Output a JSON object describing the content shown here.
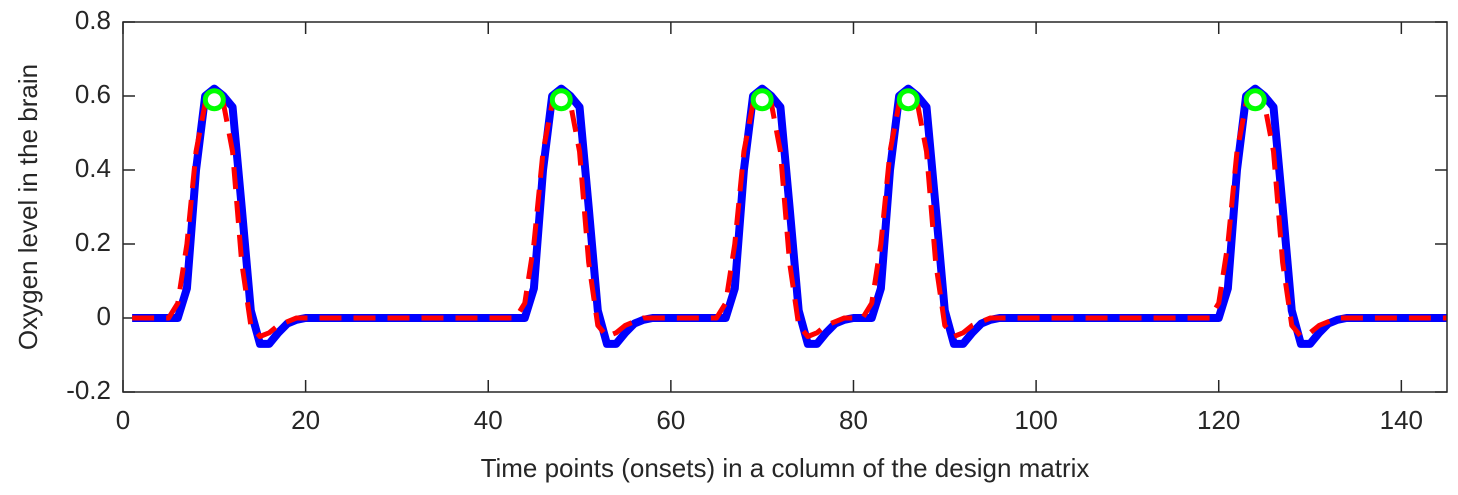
{
  "chart_data": {
    "type": "line",
    "xlabel": "Time points (onsets) in a column of the design matrix",
    "ylabel": "Oxygen level in the brain",
    "xlim": [
      0,
      145
    ],
    "xticks": [
      0,
      20,
      40,
      60,
      80,
      100,
      120,
      140
    ],
    "ylim": [
      -0.2,
      0.8
    ],
    "yticks": [
      -0.2,
      0,
      0.2,
      0.4,
      0.6,
      0.8
    ],
    "grid": false,
    "x": [
      1,
      2,
      3,
      4,
      5,
      6,
      7,
      8,
      9,
      10,
      11,
      12,
      13,
      14,
      15,
      16,
      17,
      18,
      19,
      20,
      21,
      22,
      23,
      24,
      25,
      26,
      27,
      28,
      29,
      30,
      31,
      32,
      33,
      34,
      35,
      36,
      37,
      38,
      39,
      40,
      41,
      42,
      43,
      44,
      45,
      46,
      47,
      48,
      49,
      50,
      51,
      52,
      53,
      54,
      55,
      56,
      57,
      58,
      59,
      60,
      61,
      62,
      63,
      64,
      65,
      66,
      67,
      68,
      69,
      70,
      71,
      72,
      73,
      74,
      75,
      76,
      77,
      78,
      79,
      80,
      81,
      82,
      83,
      84,
      85,
      86,
      87,
      88,
      89,
      90,
      91,
      92,
      93,
      94,
      95,
      96,
      97,
      98,
      99,
      100,
      101,
      102,
      103,
      104,
      105,
      106,
      107,
      108,
      109,
      110,
      111,
      112,
      113,
      114,
      115,
      116,
      117,
      118,
      119,
      120,
      121,
      122,
      123,
      124,
      125,
      126,
      127,
      128,
      129,
      130,
      131,
      132,
      133,
      134,
      135,
      136,
      137,
      138,
      139,
      140,
      141,
      142,
      143,
      144,
      145
    ],
    "series": [
      {
        "color": "#0000ff",
        "line_style": "solid",
        "line_width": 8,
        "values": [
          0,
          0,
          0,
          0,
          0,
          0,
          0.08,
          0.4,
          0.6,
          0.62,
          0.6,
          0.57,
          0.3,
          0.02,
          -0.07,
          -0.07,
          -0.04,
          -0.015,
          -0.005,
          0,
          0,
          0,
          0,
          0,
          0,
          0,
          0,
          0,
          0,
          0,
          0,
          0,
          0,
          0,
          0,
          0,
          0,
          0,
          0,
          0,
          0,
          0,
          0,
          0,
          0.08,
          0.4,
          0.6,
          0.62,
          0.6,
          0.57,
          0.3,
          0.02,
          -0.07,
          -0.07,
          -0.04,
          -0.015,
          -0.005,
          0,
          0,
          0,
          0,
          0,
          0,
          0,
          0,
          0,
          0.08,
          0.4,
          0.6,
          0.62,
          0.6,
          0.57,
          0.3,
          0.02,
          -0.07,
          -0.07,
          -0.04,
          -0.015,
          -0.005,
          0,
          0,
          0,
          0.08,
          0.4,
          0.6,
          0.62,
          0.6,
          0.57,
          0.3,
          0.02,
          -0.07,
          -0.07,
          -0.04,
          -0.015,
          -0.005,
          0,
          0,
          0,
          0,
          0,
          0,
          0,
          0,
          0,
          0,
          0,
          0,
          0,
          0,
          0,
          0,
          0,
          0,
          0,
          0,
          0,
          0,
          0,
          0,
          0,
          0.08,
          0.4,
          0.6,
          0.62,
          0.6,
          0.57,
          0.3,
          0.02,
          -0.07,
          -0.07,
          -0.04,
          -0.015,
          -0.005,
          0,
          0,
          0,
          0,
          0,
          0,
          0,
          0,
          0,
          0,
          0,
          0
        ]
      },
      {
        "color": "#ff0000",
        "line_style": "dashed",
        "line_width": 5,
        "values": [
          0,
          0,
          0,
          0,
          0,
          0.04,
          0.2,
          0.45,
          0.58,
          0.59,
          0.58,
          0.45,
          0.15,
          -0.02,
          -0.05,
          -0.04,
          -0.02,
          -0.01,
          0,
          0,
          0,
          0,
          0,
          0,
          0,
          0,
          0,
          0,
          0,
          0,
          0,
          0,
          0,
          0,
          0,
          0,
          0,
          0,
          0,
          0,
          0,
          0,
          0,
          0.04,
          0.2,
          0.45,
          0.58,
          0.59,
          0.58,
          0.45,
          0.15,
          -0.02,
          -0.05,
          -0.04,
          -0.02,
          -0.01,
          0,
          0,
          0,
          0,
          0,
          0,
          0,
          0,
          0,
          0.04,
          0.2,
          0.45,
          0.58,
          0.59,
          0.58,
          0.45,
          0.15,
          -0.02,
          -0.05,
          -0.04,
          -0.02,
          -0.01,
          0,
          0,
          0,
          0.04,
          0.2,
          0.45,
          0.58,
          0.59,
          0.58,
          0.45,
          0.15,
          -0.02,
          -0.05,
          -0.04,
          -0.02,
          -0.01,
          0,
          0,
          0,
          0,
          0,
          0,
          0,
          0,
          0,
          0,
          0,
          0,
          0,
          0,
          0,
          0,
          0,
          0,
          0,
          0,
          0,
          0,
          0,
          0,
          0,
          0.04,
          0.2,
          0.45,
          0.58,
          0.59,
          0.58,
          0.45,
          0.15,
          -0.02,
          -0.05,
          -0.04,
          -0.02,
          -0.01,
          0,
          0,
          0,
          0,
          0,
          0,
          0,
          0,
          0,
          0,
          0,
          0,
          0
        ]
      },
      {
        "color": "#00ff00",
        "line_style": "none",
        "marker": "circle",
        "line_width": 5,
        "x": [
          10,
          48,
          70,
          86,
          124
        ],
        "values": [
          0.59,
          0.59,
          0.59,
          0.59,
          0.59
        ]
      }
    ]
  }
}
